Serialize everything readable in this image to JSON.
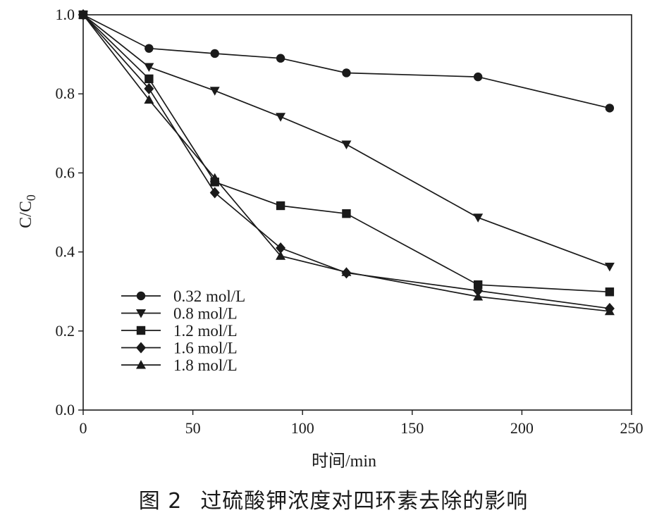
{
  "chart_data": {
    "type": "line",
    "xlabel": "时间/min",
    "ylabel": {
      "main": "C/C",
      "sub": "0"
    },
    "xlim": [
      0,
      250
    ],
    "ylim": [
      0.0,
      1.0
    ],
    "xticks": [
      0,
      50,
      100,
      150,
      200,
      250
    ],
    "yticks": [
      0.0,
      0.2,
      0.4,
      0.6,
      0.8,
      1.0
    ],
    "xtick_labels": [
      "0",
      "50",
      "100",
      "150",
      "200",
      "250"
    ],
    "ytick_labels": [
      "0.0",
      "0.2",
      "0.4",
      "0.6",
      "0.8",
      "1.0"
    ],
    "grid": false,
    "legend_position": "lower-left",
    "x": [
      0,
      30,
      60,
      90,
      120,
      180,
      240
    ],
    "series": [
      {
        "name": "0.32 mol/L",
        "marker": "circle",
        "values": [
          1.0,
          0.915,
          0.902,
          0.89,
          0.853,
          0.843,
          0.764
        ]
      },
      {
        "name": "0.8 mol/L",
        "marker": "triangle-down",
        "values": [
          1.0,
          0.868,
          0.808,
          0.742,
          0.672,
          0.487,
          0.363
        ]
      },
      {
        "name": "1.2 mol/L",
        "marker": "square",
        "values": [
          1.0,
          0.838,
          0.577,
          0.517,
          0.497,
          0.317,
          0.299
        ]
      },
      {
        "name": "1.6 mol/L",
        "marker": "diamond",
        "values": [
          1.0,
          0.813,
          0.55,
          0.41,
          0.347,
          0.302,
          0.257
        ]
      },
      {
        "name": "1.8 mol/L",
        "marker": "triangle-up",
        "values": [
          1.0,
          0.785,
          0.587,
          0.39,
          0.349,
          0.287,
          0.25
        ]
      }
    ]
  },
  "caption": {
    "figure_number": "图 2",
    "title": "过硫酸钾浓度对四环素去除的影响"
  }
}
